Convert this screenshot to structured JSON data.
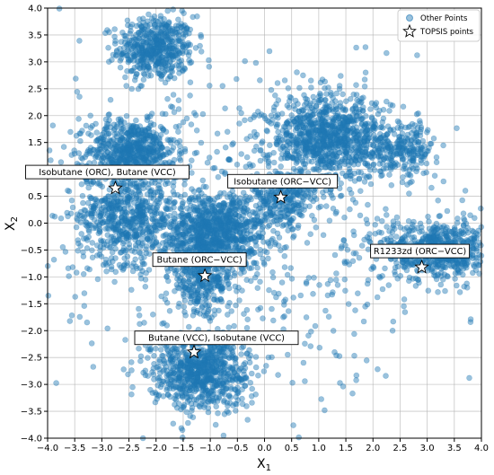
{
  "chart_data": {
    "type": "scatter",
    "xlabel": "X",
    "xlabel_sub": "1",
    "ylabel": "X",
    "ylabel_sub": "2",
    "xlim": [
      -4.0,
      4.0
    ],
    "ylim": [
      -4.0,
      4.0
    ],
    "xticks": [
      -4.0,
      -3.5,
      -3.0,
      -2.5,
      -2.0,
      -1.5,
      -1.0,
      -0.5,
      0.0,
      0.5,
      1.0,
      1.5,
      2.0,
      2.5,
      3.0,
      3.5,
      4.0
    ],
    "xtick_labels": [
      "−4.0",
      "−3.5",
      "−3.0",
      "−2.5",
      "−2.0",
      "−1.5",
      "−1.0",
      "−0.5",
      "0.0",
      "0.5",
      "1.0",
      "1.5",
      "2.0",
      "2.5",
      "3.0",
      "3.5",
      "4.0"
    ],
    "yticks": [
      -4.0,
      -3.5,
      -3.0,
      -2.5,
      -2.0,
      -1.5,
      -1.0,
      -0.5,
      0.0,
      0.5,
      1.0,
      1.5,
      2.0,
      2.5,
      3.0,
      3.5,
      4.0
    ],
    "ytick_labels": [
      "−4.0",
      "−3.5",
      "−3.0",
      "−2.5",
      "−2.0",
      "−1.5",
      "−1.0",
      "−0.5",
      "0.0",
      "0.5",
      "1.0",
      "1.5",
      "2.0",
      "2.5",
      "3.0",
      "3.5",
      "4.0"
    ],
    "grid": true,
    "legend_position": "top-right",
    "series": [
      {
        "name": "Other Points",
        "marker": "circle",
        "color": "#1f77b4",
        "alpha": 0.45,
        "clusters": [
          {
            "cx": -2.0,
            "cy": 3.25,
            "sx": 0.35,
            "sy": 0.3,
            "n": 500
          },
          {
            "cx": -2.45,
            "cy": 1.35,
            "sx": 0.4,
            "sy": 0.28,
            "n": 600
          },
          {
            "cx": -2.55,
            "cy": 0.15,
            "sx": 0.45,
            "sy": 0.45,
            "n": 600
          },
          {
            "cx": -0.9,
            "cy": -0.15,
            "sx": 0.5,
            "sy": 0.35,
            "n": 900
          },
          {
            "cx": -1.15,
            "cy": -1.0,
            "sx": 0.3,
            "sy": 0.35,
            "n": 350
          },
          {
            "cx": 1.2,
            "cy": 1.55,
            "sx": 0.55,
            "sy": 0.4,
            "n": 1000
          },
          {
            "cx": 0.35,
            "cy": 0.45,
            "sx": 0.3,
            "sy": 0.25,
            "n": 250
          },
          {
            "cx": 2.6,
            "cy": 1.4,
            "sx": 0.3,
            "sy": 0.25,
            "n": 200
          },
          {
            "cx": 3.25,
            "cy": -0.5,
            "sx": 0.55,
            "sy": 0.28,
            "n": 700
          },
          {
            "cx": -1.2,
            "cy": -2.75,
            "sx": 0.45,
            "sy": 0.35,
            "n": 800
          },
          {
            "cx": -0.5,
            "cy": 0.0,
            "sx": 2.0,
            "sy": 1.8,
            "n": 600
          }
        ]
      },
      {
        "name": "TOPSIS points",
        "marker": "star",
        "color": "#ffffff",
        "points": [
          {
            "x": -2.75,
            "y": 0.65,
            "label": "Isobutane (ORC), Butane (VCC)"
          },
          {
            "x": 0.3,
            "y": 0.48,
            "label": "Isobutane (ORC−VCC)"
          },
          {
            "x": -1.1,
            "y": -0.98,
            "label": "Butane (ORC−VCC)"
          },
          {
            "x": 2.9,
            "y": -0.82,
            "label": "R1233zd (ORC−VCC)"
          },
          {
            "x": -1.3,
            "y": -2.4,
            "label": "Butane (VCC), Isobutane (VCC)"
          }
        ]
      }
    ]
  }
}
